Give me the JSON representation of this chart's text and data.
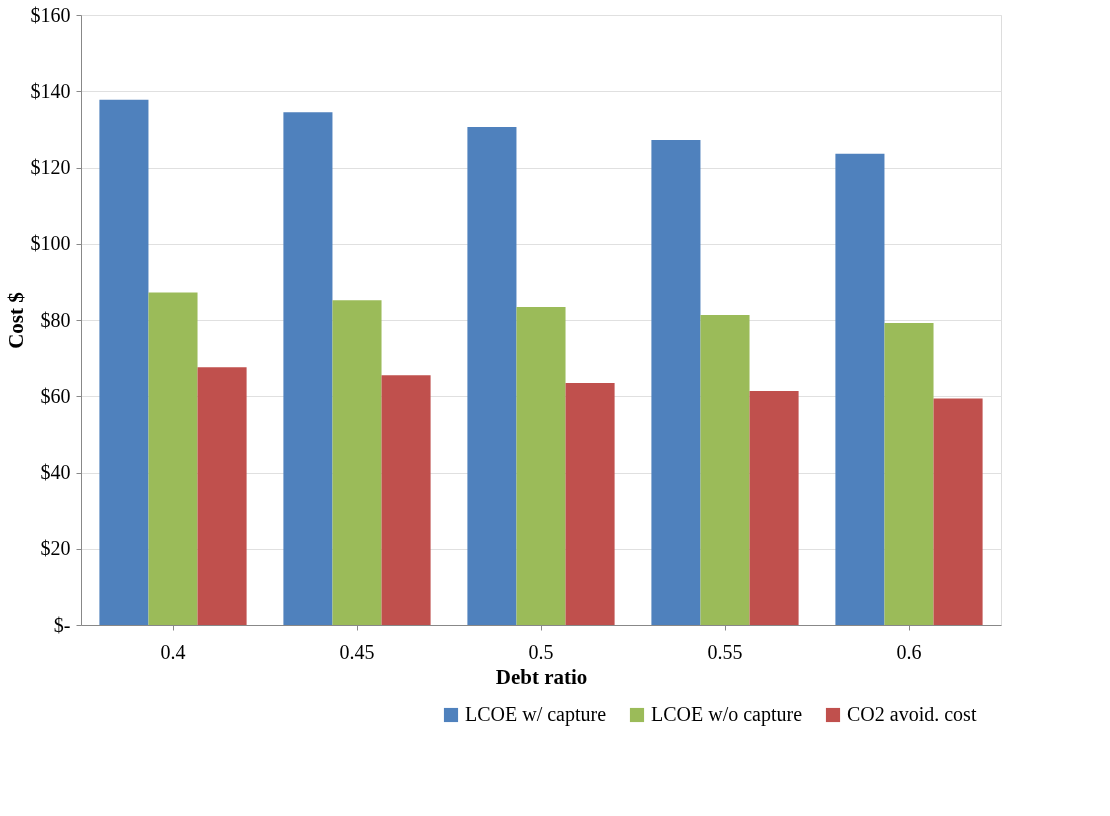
{
  "chart_data": {
    "type": "bar",
    "xlabel": "Debt ratio",
    "ylabel": "Cost $",
    "categories": [
      "0.4",
      "0.45",
      "0.5",
      "0.55",
      "0.6"
    ],
    "series": [
      {
        "name": "LCOE w/ capture",
        "color": "#4f81bd",
        "values": [
          137.8,
          134.5,
          130.6,
          127.2,
          123.6
        ]
      },
      {
        "name": "LCOE w/o capture",
        "color": "#9bbb59",
        "values": [
          87.2,
          85.2,
          83.4,
          81.3,
          79.2
        ]
      },
      {
        "name": "CO2 avoid. cost",
        "color": "#c0504d",
        "values": [
          67.6,
          65.5,
          63.5,
          61.4,
          59.4
        ]
      }
    ],
    "ylim": [
      0,
      160
    ],
    "yticks": [
      {
        "value": 0,
        "label": "$-"
      },
      {
        "value": 20,
        "label": "$20"
      },
      {
        "value": 40,
        "label": "$40"
      },
      {
        "value": 60,
        "label": "$60"
      },
      {
        "value": 80,
        "label": "$80"
      },
      {
        "value": 100,
        "label": "$100"
      },
      {
        "value": 120,
        "label": "$120"
      },
      {
        "value": 140,
        "label": "$140"
      },
      {
        "value": 160,
        "label": "$160"
      }
    ],
    "grid": "y",
    "legend": "bottom right"
  }
}
